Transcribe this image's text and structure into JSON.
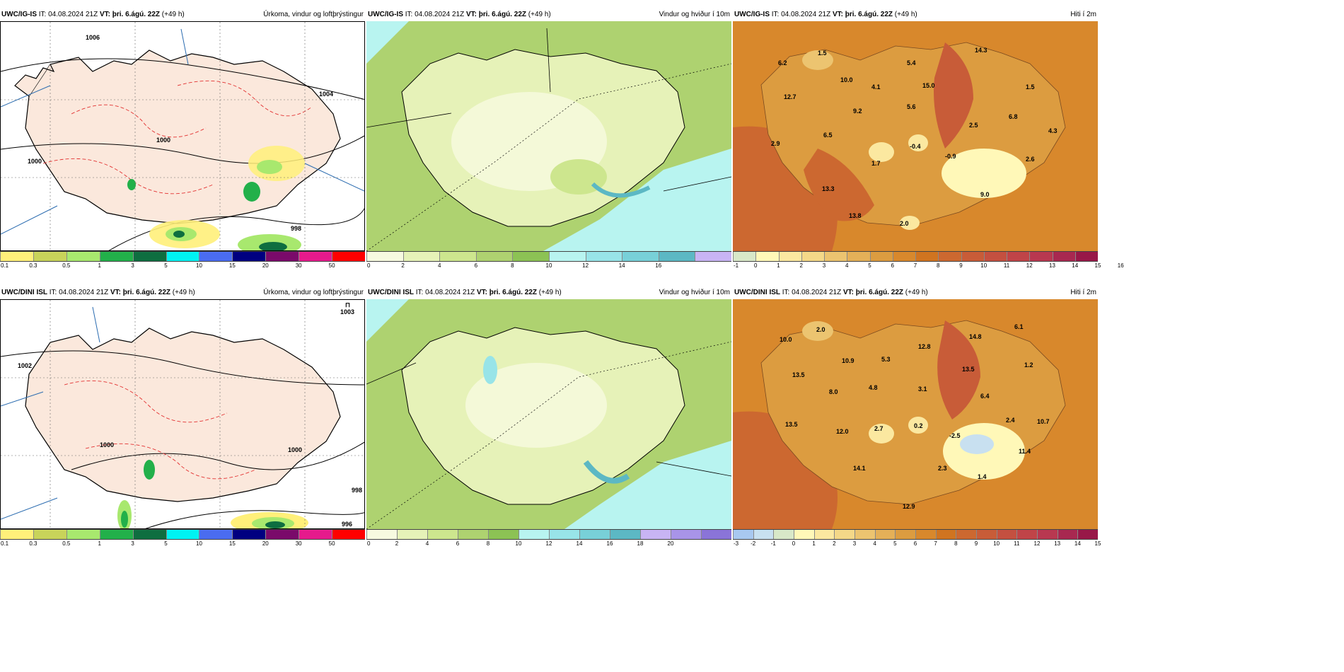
{
  "rows": [
    {
      "panels": [
        {
          "type": "precip",
          "header": {
            "model": "UWC/IG-IS",
            "it_label": "IT:",
            "it_value": "04.08.2024 21Z",
            "vt_label": "VT:",
            "vt_value": "þri. 6.ágú. 22Z",
            "lead": "(+49 h)",
            "title": "Úrkoma, vindur og loftþrýstingur"
          },
          "colorbar": {
            "colors": [
              "#fff07a",
              "#c8d35a",
              "#a8e86e",
              "#22b04a",
              "#0e6e40",
              "#00f2f2",
              "#4a6cf0",
              "#000080",
              "#7a0a6a",
              "#e61a8c",
              "#ff0000"
            ],
            "ticks": [
              "0.1",
              "0.3",
              "0.5",
              "1",
              "3",
              "5",
              "10",
              "15",
              "20",
              "30",
              "50"
            ]
          },
          "map_labels": [
            "1004",
            "1000",
            "1000",
            "998",
            "1006"
          ]
        },
        {
          "type": "wind",
          "header": {
            "model": "UWC/IG-IS",
            "it_label": "IT:",
            "it_value": "04.08.2024 21Z",
            "vt_label": "VT:",
            "vt_value": "þri. 6.ágú. 22Z",
            "lead": "(+49 h)",
            "title": "Vindur og hviður í 10m"
          },
          "colorbar": {
            "colors": [
              "#f7fae0",
              "#e6f2b8",
              "#cde68e",
              "#aed270",
              "#8cc254",
              "#b8f4f0",
              "#98e4e8",
              "#78d0d8",
              "#5cb8c4",
              "#c8b4f4"
            ],
            "ticks": [
              "0",
              "2",
              "4",
              "6",
              "8",
              "10",
              "12",
              "14",
              "16"
            ]
          }
        },
        {
          "type": "temp",
          "header": {
            "model": "UWC/IG-IS",
            "it_label": "IT:",
            "it_value": "04.08.2024 21Z",
            "vt_label": "VT:",
            "vt_value": "þri. 6.ágú. 22Z",
            "lead": "(+49 h)",
            "title": "Hiti í 2m"
          },
          "colorbar": {
            "colors": [
              "#d8e8c8",
              "#fff8b8",
              "#fbe8a0",
              "#f4d888",
              "#ecc470",
              "#e4b058",
              "#dc9c40",
              "#d8882c",
              "#d07420",
              "#cc6830",
              "#c85c38",
              "#c45040",
              "#c04448",
              "#b83850",
              "#a82850",
              "#981848"
            ],
            "ticks": [
              "-1",
              "0",
              "1",
              "2",
              "3",
              "4",
              "5",
              "6",
              "7",
              "8",
              "9",
              "10",
              "11",
              "12",
              "13",
              "14",
              "15",
              "16"
            ]
          },
          "station_values": [
            "1.5",
            "14.3",
            "6.2",
            "10.0",
            "5.4",
            "4.1",
            "15.0",
            "1.5",
            "12.7",
            "9.2",
            "5.6",
            "6.8",
            "2.5",
            "4.3",
            "6.5",
            "2.9",
            "-0.4",
            "1.7",
            "-0.9",
            "2.6",
            "13.3",
            "9.0",
            "13.8",
            "2.0"
          ]
        }
      ]
    },
    {
      "panels": [
        {
          "type": "precip",
          "header": {
            "model": "UWC/DINI ISL",
            "it_label": "IT:",
            "it_value": "04.08.2024 21Z",
            "vt_label": "VT:",
            "vt_value": "þri. 6.ágú. 22Z",
            "lead": "(+49 h)",
            "title": "Úrkoma, vindur og loftþrýstingur"
          },
          "colorbar": {
            "colors": [
              "#fff07a",
              "#c8d35a",
              "#a8e86e",
              "#22b04a",
              "#0e6e40",
              "#00f2f2",
              "#4a6cf0",
              "#000080",
              "#7a0a6a",
              "#e61a8c",
              "#ff0000"
            ],
            "ticks": [
              "0.1",
              "0.3",
              "0.5",
              "1",
              "3",
              "5",
              "10",
              "15",
              "20",
              "30",
              "50"
            ]
          },
          "map_labels": [
            "1003",
            "1002",
            "1000",
            "1000",
            "998",
            "996"
          ],
          "high_marker": "⊓"
        },
        {
          "type": "wind",
          "header": {
            "model": "UWC/DINI ISL",
            "it_label": "IT:",
            "it_value": "04.08.2024 21Z",
            "vt_label": "VT:",
            "vt_value": "þri. 6.ágú. 22Z",
            "lead": "(+49 h)",
            "title": "Vindur og hviður í 10m"
          },
          "colorbar": {
            "colors": [
              "#f7fae0",
              "#e6f2b8",
              "#cde68e",
              "#aed270",
              "#8cc254",
              "#b8f4f0",
              "#98e4e8",
              "#78d0d8",
              "#5cb8c4",
              "#c8b4f4",
              "#a894e8",
              "#8a74d8"
            ],
            "ticks": [
              "0",
              "2",
              "4",
              "6",
              "8",
              "10",
              "12",
              "14",
              "16",
              "18",
              "20"
            ]
          }
        },
        {
          "type": "temp",
          "header": {
            "model": "UWC/DINI ISL",
            "it_label": "IT:",
            "it_value": "04.08.2024 21Z",
            "vt_label": "VT:",
            "vt_value": "þri. 6.ágú. 22Z",
            "lead": "(+49 h)",
            "title": "Hiti í 2m"
          },
          "colorbar": {
            "colors": [
              "#a8c8f0",
              "#c8e0f0",
              "#d8e8c8",
              "#fff8b8",
              "#fbe8a0",
              "#f4d888",
              "#ecc470",
              "#e4b058",
              "#dc9c40",
              "#d8882c",
              "#d07420",
              "#cc6830",
              "#c85c38",
              "#c45040",
              "#c04448",
              "#b83850",
              "#a82850",
              "#981848"
            ],
            "ticks": [
              "-3",
              "-2",
              "-1",
              "0",
              "1",
              "2",
              "3",
              "4",
              "5",
              "6",
              "7",
              "8",
              "9",
              "10",
              "11",
              "12",
              "13",
              "14",
              "15"
            ]
          },
          "station_values": [
            "2.0",
            "6.1",
            "10.0",
            "14.8",
            "12.8",
            "13.5",
            "5.3",
            "10.9",
            "1.2",
            "4.8",
            "8.0",
            "3.1",
            "13.5",
            "6.4",
            "2.7",
            "0.2",
            "12.0",
            "2.4",
            "10.7",
            "-2.5",
            "13.5",
            "11.4",
            "2.3",
            "14.1",
            "1.4",
            "12.9"
          ]
        }
      ]
    }
  ]
}
